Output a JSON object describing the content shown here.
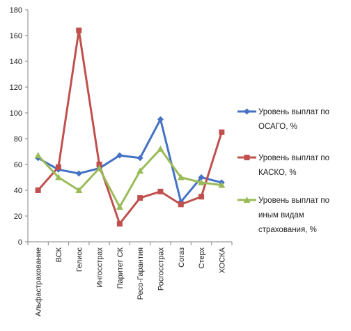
{
  "chart_data": {
    "type": "line",
    "title": "",
    "xlabel": "",
    "ylabel": "",
    "categories": [
      "Альфастрахование",
      "ВСК",
      "Гелиос",
      "Ингосстрах",
      "Паритет СК",
      "Ресо-Гарантия",
      "Росгосстрах",
      "Согаз",
      "Стерх",
      "ХОСКА"
    ],
    "ylim": [
      0,
      180
    ],
    "yticks": [
      0,
      20,
      40,
      60,
      80,
      100,
      120,
      140,
      160,
      180
    ],
    "grid": false,
    "legend_position": "right",
    "series": [
      {
        "name": "Уровень выплат по ОСАГО, %",
        "legend_lines": [
          "Уровень выплат по",
          "ОСАГО, %"
        ],
        "color": "#4472C4",
        "marker": "diamond",
        "values": [
          65,
          56,
          53,
          57,
          67,
          65,
          95,
          31,
          50,
          46
        ]
      },
      {
        "name": "Уровень выплат по КАСКО, %",
        "legend_lines": [
          "Уровень выплат по",
          "КАСКО, %"
        ],
        "color": "#C0504D",
        "marker": "square",
        "values": [
          40,
          58,
          164,
          60,
          14,
          34,
          39,
          29,
          35,
          85
        ]
      },
      {
        "name": "Уровень выплат по иным видам страхования, %",
        "legend_lines": [
          "Уровень выплат по",
          "иным видам",
          "страхования, %"
        ],
        "color": "#9BBB59",
        "marker": "triangle",
        "values": [
          67,
          50,
          40,
          57,
          27,
          55,
          72,
          50,
          46,
          44
        ]
      }
    ]
  }
}
